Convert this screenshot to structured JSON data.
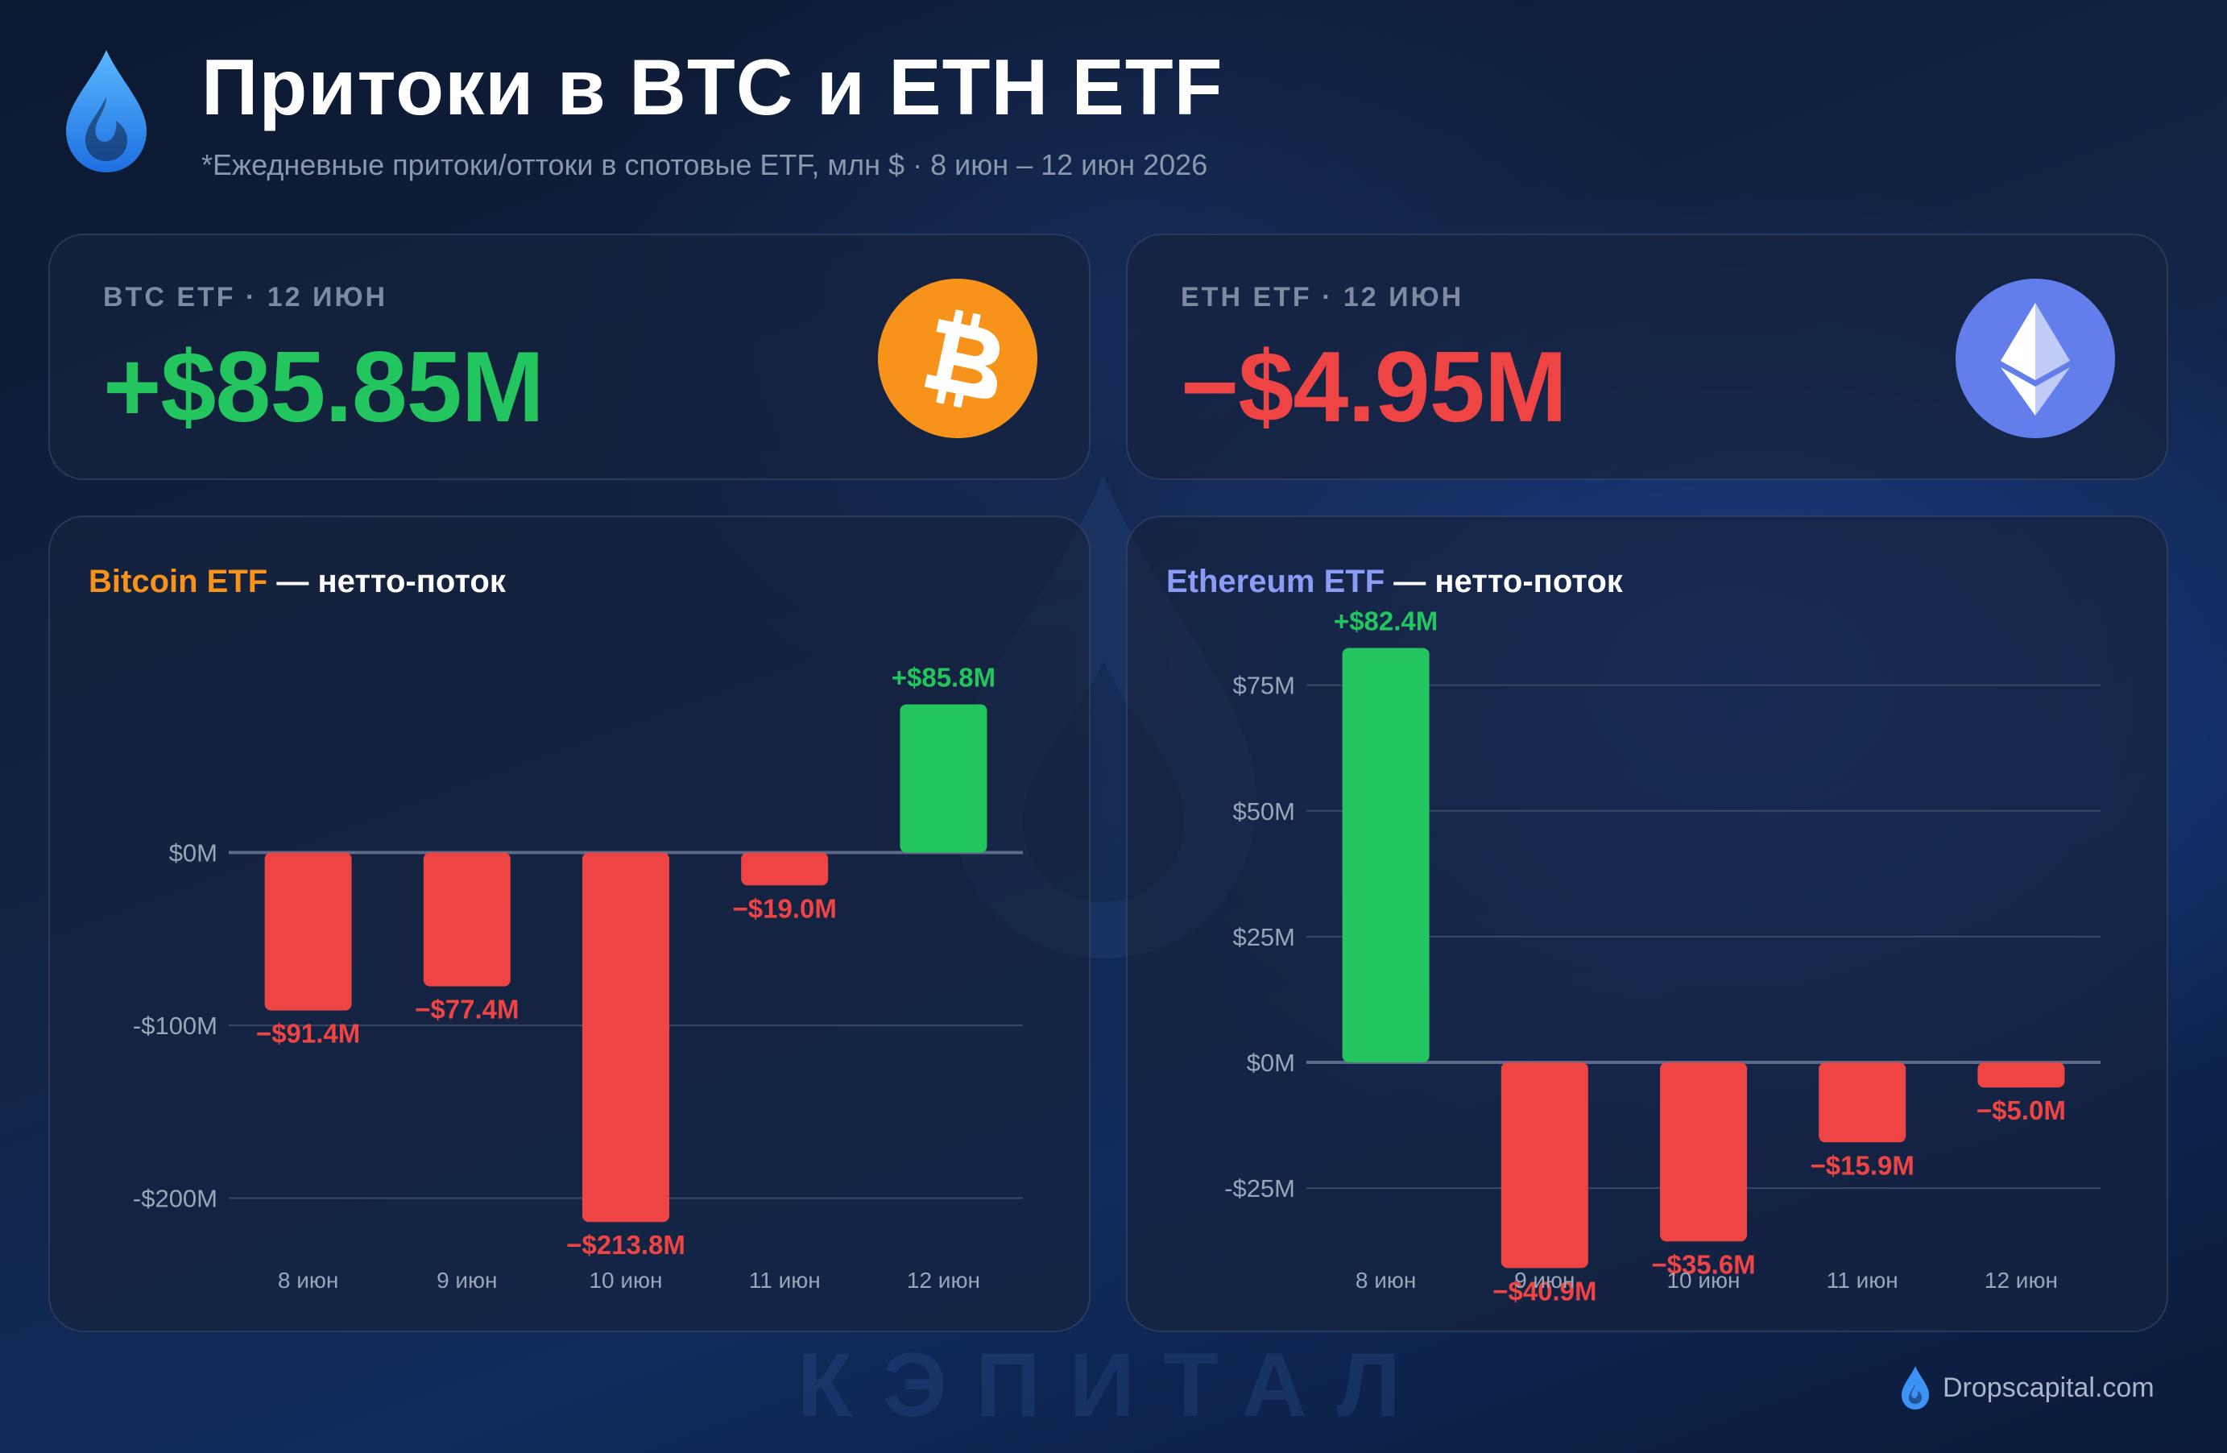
{
  "header": {
    "title": "Притоки в BTC и ETH ETF",
    "subtitle": "*Ежедневные притоки/оттоки в спотовые ETF, млн $ · 8 июн – 12 июн 2026"
  },
  "kpis": [
    {
      "label": "BTC ETF · 12 ИЮН",
      "value": "+$85.85M",
      "color": "#22c55e",
      "coin_icon": "bitcoin-icon",
      "coin_color": "#f7931a"
    },
    {
      "label": "ETH ETF · 12 ИЮН",
      "value": "−$4.95M",
      "color": "#ef4444",
      "coin_icon": "ethereum-icon",
      "coin_color": "#627eea"
    }
  ],
  "colors": {
    "positive": "#22c55e",
    "negative": "#ef4444",
    "grid": "#3a4866",
    "zero_line": "#5b6a88",
    "tick": "#9aa5b8"
  },
  "chart_data": [
    {
      "type": "bar",
      "title_accent": "Bitcoin ETF",
      "title_rest": " — нетто-поток",
      "accent_color": "#f7931a",
      "categories": [
        "8 июн",
        "9 июн",
        "10 июн",
        "11 июн",
        "12 июн"
      ],
      "values": [
        -91.4,
        -77.4,
        -213.8,
        -19.0,
        85.8
      ],
      "data_labels": [
        "−$91.4M",
        "−$77.4M",
        "−$213.8M",
        "−$19.0M",
        "+$85.8M"
      ],
      "yticks": [
        0,
        -100,
        -200
      ],
      "ytick_labels": [
        "$0M",
        "-$100M",
        "-$200M"
      ],
      "ylim": [
        -230,
        100
      ],
      "grid": true
    },
    {
      "type": "bar",
      "title_accent": "Ethereum ETF",
      "title_rest": " — нетто-поток",
      "accent_color": "#8b9cf7",
      "categories": [
        "8 июн",
        "9 июн",
        "10 июн",
        "11 июн",
        "12 июн"
      ],
      "values": [
        82.4,
        -40.9,
        -35.6,
        -15.9,
        -5.0
      ],
      "data_labels": [
        "+$82.4M",
        "−$40.9M",
        "−$35.6M",
        "−$15.9M",
        "−$5.0M"
      ],
      "yticks": [
        75,
        50,
        25,
        0,
        -25
      ],
      "ytick_labels": [
        "$75M",
        "$50M",
        "$25M",
        "$0M",
        "-$25M"
      ],
      "ylim": [
        -45,
        90
      ],
      "grid": true
    }
  ],
  "watermark": "КЭПИТАЛ",
  "footer": {
    "text": "Dropscapital.com"
  }
}
